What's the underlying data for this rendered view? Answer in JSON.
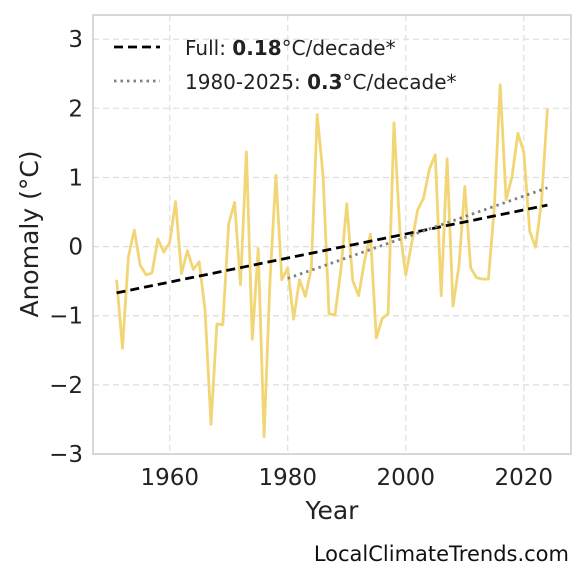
{
  "chart_data": {
    "type": "line",
    "xlabel": "Year",
    "ylabel": "Anomaly (°C)",
    "xlim": [
      1947,
      2028
    ],
    "ylim": [
      -3,
      3.35
    ],
    "x_ticks": [
      1960,
      1980,
      2000,
      2020
    ],
    "y_ticks": [
      -3,
      -2,
      -1,
      0,
      1,
      2,
      3
    ],
    "y_tick_labels": [
      "−3",
      "−2",
      "−1",
      "0",
      "1",
      "2",
      "3"
    ],
    "grid": true,
    "legend_position": "top-left",
    "series": [
      {
        "style": "solid",
        "color": "#f2d675",
        "x": [
          1951,
          1952,
          1953,
          1954,
          1955,
          1956,
          1957,
          1958,
          1959,
          1960,
          1961,
          1962,
          1963,
          1964,
          1965,
          1966,
          1967,
          1968,
          1969,
          1970,
          1971,
          1972,
          1973,
          1974,
          1975,
          1976,
          1977,
          1978,
          1979,
          1980,
          1981,
          1982,
          1983,
          1984,
          1985,
          1986,
          1987,
          1988,
          1989,
          1990,
          1991,
          1992,
          1993,
          1994,
          1995,
          1996,
          1997,
          1998,
          1999,
          2000,
          2001,
          2002,
          2003,
          2004,
          2005,
          2006,
          2007,
          2008,
          2009,
          2010,
          2011,
          2012,
          2013,
          2014,
          2015,
          2016,
          2017,
          2018,
          2019,
          2020,
          2021,
          2022,
          2023,
          2024
        ],
        "y": [
          -0.48,
          -1.47,
          -0.15,
          0.24,
          -0.27,
          -0.41,
          -0.38,
          0.11,
          -0.08,
          0.06,
          0.65,
          -0.39,
          -0.06,
          -0.33,
          -0.22,
          -0.93,
          -2.57,
          -1.12,
          -1.13,
          0.33,
          0.64,
          -0.55,
          1.37,
          -1.34,
          -0.03,
          -2.75,
          -0.49,
          1.03,
          -0.48,
          -0.31,
          -1.05,
          -0.48,
          -0.72,
          -0.32,
          1.91,
          1.02,
          -0.97,
          -0.99,
          -0.33,
          0.62,
          -0.49,
          -0.71,
          -0.21,
          0.18,
          -1.32,
          -1.04,
          -0.97,
          1.79,
          0.23,
          -0.41,
          0.05,
          0.53,
          0.7,
          1.12,
          1.33,
          -0.71,
          1.27,
          -0.86,
          -0.29,
          0.87,
          -0.31,
          -0.45,
          -0.47,
          -0.47,
          0.56,
          2.34,
          0.68,
          1.01,
          1.64,
          1.37,
          0.22,
          -0.01,
          0.65,
          1.99
        ]
      },
      {
        "name": "Full",
        "style": "dashed",
        "color": "#000000",
        "x": [
          1951,
          2024
        ],
        "y": [
          -0.67,
          0.6
        ]
      },
      {
        "name": "1980-2025",
        "style": "dotted",
        "color": "#808080",
        "x": [
          1980,
          2024
        ],
        "y": [
          -0.46,
          0.85
        ]
      }
    ],
    "legend": [
      {
        "prefix": "Full: ",
        "bold": "0.18",
        "suffix": "°C/decade*"
      },
      {
        "prefix": "1980-2025: ",
        "bold": "0.3",
        "suffix": "°C/decade*"
      }
    ]
  },
  "watermark": "LocalClimateTrends.com"
}
